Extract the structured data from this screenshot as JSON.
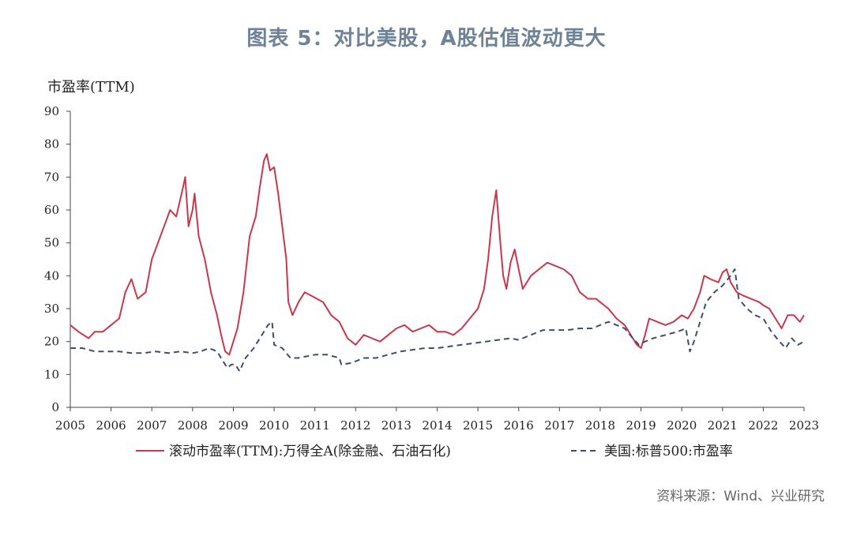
{
  "header": {
    "title": "图表 5：对比美股，A股估值波动更大"
  },
  "footer": {
    "source": "资料来源：Wind、兴业研究"
  },
  "chart_data": {
    "type": "line",
    "ylabel": "市盈率(TTM)",
    "xlabel": "",
    "xlim": [
      2005,
      2023
    ],
    "ylim": [
      0,
      90
    ],
    "yticks": [
      0,
      10,
      20,
      30,
      40,
      50,
      60,
      70,
      80,
      90
    ],
    "xticks": [
      "2005",
      "2006",
      "2007",
      "2008",
      "2009",
      "2010",
      "2011",
      "2012",
      "2013",
      "2014",
      "2015",
      "2016",
      "2017",
      "2018",
      "2019",
      "2020",
      "2021",
      "2022",
      "2023"
    ],
    "legend_position": "bottom",
    "grid": false,
    "series": [
      {
        "name": "滚动市盈率(TTM):万得全A(除金融、石油石化)",
        "color": "#c8384a",
        "style": "solid",
        "points": [
          [
            2005.0,
            25
          ],
          [
            2005.2,
            23
          ],
          [
            2005.45,
            21
          ],
          [
            2005.6,
            23
          ],
          [
            2005.8,
            23
          ],
          [
            2006.0,
            25
          ],
          [
            2006.2,
            27
          ],
          [
            2006.35,
            35
          ],
          [
            2006.5,
            39
          ],
          [
            2006.65,
            33
          ],
          [
            2006.85,
            35
          ],
          [
            2007.0,
            45
          ],
          [
            2007.15,
            50
          ],
          [
            2007.3,
            55
          ],
          [
            2007.45,
            60
          ],
          [
            2007.6,
            58
          ],
          [
            2007.75,
            66
          ],
          [
            2007.82,
            70
          ],
          [
            2007.9,
            55
          ],
          [
            2008.0,
            60
          ],
          [
            2008.05,
            65
          ],
          [
            2008.15,
            52
          ],
          [
            2008.3,
            45
          ],
          [
            2008.45,
            35
          ],
          [
            2008.6,
            28
          ],
          [
            2008.7,
            22
          ],
          [
            2008.8,
            17
          ],
          [
            2008.9,
            16
          ],
          [
            2009.0,
            20
          ],
          [
            2009.1,
            24
          ],
          [
            2009.25,
            35
          ],
          [
            2009.4,
            52
          ],
          [
            2009.55,
            58
          ],
          [
            2009.65,
            67
          ],
          [
            2009.75,
            75
          ],
          [
            2009.82,
            77
          ],
          [
            2009.9,
            72
          ],
          [
            2010.0,
            73
          ],
          [
            2010.1,
            65
          ],
          [
            2010.2,
            55
          ],
          [
            2010.3,
            45
          ],
          [
            2010.35,
            32
          ],
          [
            2010.45,
            28
          ],
          [
            2010.6,
            32
          ],
          [
            2010.75,
            35
          ],
          [
            2010.9,
            34
          ],
          [
            2011.05,
            33
          ],
          [
            2011.2,
            32
          ],
          [
            2011.4,
            28
          ],
          [
            2011.6,
            26
          ],
          [
            2011.8,
            21
          ],
          [
            2012.0,
            19
          ],
          [
            2012.2,
            22
          ],
          [
            2012.4,
            21
          ],
          [
            2012.6,
            20
          ],
          [
            2012.8,
            22
          ],
          [
            2013.0,
            24
          ],
          [
            2013.2,
            25
          ],
          [
            2013.4,
            23
          ],
          [
            2013.6,
            24
          ],
          [
            2013.8,
            25
          ],
          [
            2014.0,
            23
          ],
          [
            2014.2,
            23
          ],
          [
            2014.4,
            22
          ],
          [
            2014.6,
            24
          ],
          [
            2014.8,
            27
          ],
          [
            2015.0,
            30
          ],
          [
            2015.15,
            36
          ],
          [
            2015.25,
            45
          ],
          [
            2015.35,
            58
          ],
          [
            2015.45,
            66
          ],
          [
            2015.55,
            50
          ],
          [
            2015.62,
            40
          ],
          [
            2015.7,
            36
          ],
          [
            2015.8,
            44
          ],
          [
            2015.9,
            48
          ],
          [
            2016.0,
            42
          ],
          [
            2016.1,
            36
          ],
          [
            2016.3,
            40
          ],
          [
            2016.5,
            42
          ],
          [
            2016.7,
            44
          ],
          [
            2016.9,
            43
          ],
          [
            2017.1,
            42
          ],
          [
            2017.3,
            40
          ],
          [
            2017.5,
            35
          ],
          [
            2017.7,
            33
          ],
          [
            2017.9,
            33
          ],
          [
            2018.0,
            32
          ],
          [
            2018.2,
            30
          ],
          [
            2018.4,
            27
          ],
          [
            2018.6,
            25
          ],
          [
            2018.8,
            21
          ],
          [
            2018.9,
            19
          ],
          [
            2019.0,
            18
          ],
          [
            2019.1,
            22
          ],
          [
            2019.2,
            27
          ],
          [
            2019.4,
            26
          ],
          [
            2019.6,
            25
          ],
          [
            2019.8,
            26
          ],
          [
            2020.0,
            28
          ],
          [
            2020.15,
            27
          ],
          [
            2020.3,
            30
          ],
          [
            2020.45,
            35
          ],
          [
            2020.55,
            40
          ],
          [
            2020.7,
            39
          ],
          [
            2020.9,
            38
          ],
          [
            2021.0,
            41
          ],
          [
            2021.1,
            42
          ],
          [
            2021.2,
            38
          ],
          [
            2021.35,
            35
          ],
          [
            2021.5,
            34
          ],
          [
            2021.7,
            33
          ],
          [
            2021.9,
            32
          ],
          [
            2022.0,
            31
          ],
          [
            2022.15,
            30
          ],
          [
            2022.3,
            27
          ],
          [
            2022.45,
            24
          ],
          [
            2022.6,
            28
          ],
          [
            2022.75,
            28
          ],
          [
            2022.9,
            26
          ],
          [
            2023.0,
            28
          ]
        ]
      },
      {
        "name": "美国:标普500:市盈率",
        "color": "#3e4e6e",
        "style": "dashed",
        "points": [
          [
            2005.0,
            18
          ],
          [
            2005.3,
            18
          ],
          [
            2005.6,
            17
          ],
          [
            2005.9,
            17
          ],
          [
            2006.2,
            17
          ],
          [
            2006.5,
            16.5
          ],
          [
            2006.8,
            16.5
          ],
          [
            2007.1,
            17
          ],
          [
            2007.4,
            16.5
          ],
          [
            2007.7,
            17
          ],
          [
            2008.0,
            16.5
          ],
          [
            2008.2,
            17
          ],
          [
            2008.4,
            18
          ],
          [
            2008.6,
            17
          ],
          [
            2008.75,
            14
          ],
          [
            2008.85,
            12
          ],
          [
            2008.95,
            13
          ],
          [
            2009.05,
            13
          ],
          [
            2009.15,
            11
          ],
          [
            2009.3,
            15
          ],
          [
            2009.5,
            18
          ],
          [
            2009.7,
            22
          ],
          [
            2009.85,
            25
          ],
          [
            2009.95,
            26
          ],
          [
            2010.0,
            19
          ],
          [
            2010.2,
            18
          ],
          [
            2010.4,
            15
          ],
          [
            2010.6,
            15
          ],
          [
            2010.8,
            15.5
          ],
          [
            2011.0,
            16
          ],
          [
            2011.3,
            16
          ],
          [
            2011.6,
            15
          ],
          [
            2011.65,
            13
          ],
          [
            2011.9,
            13.5
          ],
          [
            2012.2,
            15
          ],
          [
            2012.5,
            15
          ],
          [
            2012.8,
            16
          ],
          [
            2013.1,
            17
          ],
          [
            2013.4,
            17.5
          ],
          [
            2013.7,
            18
          ],
          [
            2014.0,
            18
          ],
          [
            2014.3,
            18.5
          ],
          [
            2014.6,
            19
          ],
          [
            2014.9,
            19.5
          ],
          [
            2015.2,
            20
          ],
          [
            2015.5,
            20.5
          ],
          [
            2015.8,
            21
          ],
          [
            2016.0,
            20.5
          ],
          [
            2016.3,
            22
          ],
          [
            2016.6,
            23.5
          ],
          [
            2016.9,
            23.5
          ],
          [
            2017.2,
            23.5
          ],
          [
            2017.5,
            24
          ],
          [
            2017.8,
            24
          ],
          [
            2018.0,
            25
          ],
          [
            2018.2,
            26
          ],
          [
            2018.4,
            25
          ],
          [
            2018.6,
            24
          ],
          [
            2018.8,
            21
          ],
          [
            2018.95,
            19
          ],
          [
            2019.1,
            20
          ],
          [
            2019.3,
            21
          ],
          [
            2019.6,
            22
          ],
          [
            2019.9,
            23
          ],
          [
            2020.1,
            24
          ],
          [
            2020.2,
            17
          ],
          [
            2020.3,
            20
          ],
          [
            2020.45,
            26
          ],
          [
            2020.6,
            32
          ],
          [
            2020.8,
            35
          ],
          [
            2021.0,
            37
          ],
          [
            2021.2,
            40
          ],
          [
            2021.3,
            42
          ],
          [
            2021.4,
            33
          ],
          [
            2021.6,
            30
          ],
          [
            2021.8,
            28
          ],
          [
            2022.0,
            27
          ],
          [
            2022.2,
            23
          ],
          [
            2022.4,
            20
          ],
          [
            2022.55,
            18
          ],
          [
            2022.7,
            21
          ],
          [
            2022.85,
            19
          ],
          [
            2023.0,
            20
          ]
        ]
      }
    ]
  }
}
